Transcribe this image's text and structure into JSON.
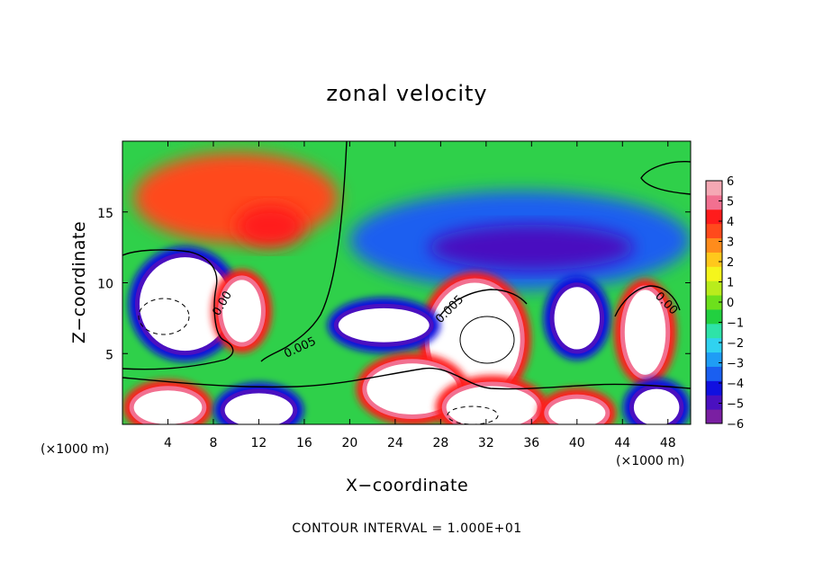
{
  "chart_data": {
    "type": "heatmap",
    "title": "zonal velocity",
    "xlabel": "X−coordinate",
    "ylabel": "Z−coordinate",
    "x_unit_left": "(×1000 m)",
    "x_unit_right": "(×1000 m)",
    "xlim": [
      0,
      50
    ],
    "ylim": [
      0,
      20
    ],
    "xticks": [
      4,
      8,
      12,
      16,
      20,
      24,
      28,
      32,
      36,
      40,
      44,
      48
    ],
    "yticks": [
      5,
      10,
      15
    ],
    "xtick_labels": [
      "4",
      "8",
      "12",
      "16",
      "20",
      "24",
      "28",
      "32",
      "36",
      "40",
      "44",
      "48"
    ],
    "ytick_labels": [
      "5",
      "10",
      "15"
    ],
    "colorbar": {
      "min": -6,
      "max": 6,
      "ticks": [
        6,
        5,
        4,
        3,
        2,
        1,
        0,
        -1,
        -2,
        -3,
        -4,
        -5,
        -6
      ],
      "tick_labels": [
        "6",
        "5",
        "4",
        "3",
        "2",
        "1",
        "0",
        "−1",
        "−2",
        "−3",
        "−4",
        "−5",
        "−6"
      ],
      "colors": [
        "#7a1fa2",
        "#4a10c0",
        "#1010e0",
        "#1a5ff0",
        "#1f9df5",
        "#30d2f0",
        "#2ee3a8",
        "#22d040",
        "#6de01c",
        "#b9ec1c",
        "#f5f51c",
        "#ffc81c",
        "#ff8c1c",
        "#ff4a1c",
        "#ff1c1c",
        "#f27090",
        "#f5a8b4"
      ]
    },
    "contour_labels": [
      "0.00",
      "0.005",
      "0.005",
      "0.00"
    ],
    "annotation": "CONTOUR INTERVAL = 1.000E+01",
    "regions": [
      {
        "label": "upper-left positive jet",
        "cx": 10,
        "cy": 16,
        "rx": 9,
        "ry": 3.2,
        "value": 3.5
      },
      {
        "label": "upper positive core",
        "cx": 13,
        "cy": 14,
        "rx": 3,
        "ry": 1.5,
        "value": 4.5
      },
      {
        "label": "upper-right negative jet",
        "cx": 35,
        "cy": 13,
        "rx": 15,
        "ry": 3.5,
        "value": -3.5
      },
      {
        "label": "upper negative core",
        "cx": 36,
        "cy": 12.5,
        "rx": 9,
        "ry": 1.6,
        "value": -5.0
      },
      {
        "label": "left vortex",
        "cx": 5.5,
        "cy": 8.5,
        "rx": 4,
        "ry": 3.3,
        "value": -7
      },
      {
        "label": "vortex 9-12",
        "cx": 10.5,
        "cy": 8,
        "rx": 1.7,
        "ry": 2.2,
        "value": 7
      },
      {
        "label": "central vortex",
        "cx": 31,
        "cy": 6,
        "rx": 4,
        "ry": 4,
        "value": 7
      },
      {
        "label": "vortex 39",
        "cx": 40,
        "cy": 7.5,
        "rx": 2,
        "ry": 2.2,
        "value": -7
      },
      {
        "label": "vortex 46",
        "cx": 46,
        "cy": 6.5,
        "rx": 1.8,
        "ry": 3,
        "value": 7
      },
      {
        "label": "diagonal band",
        "cx": 23,
        "cy": 7,
        "rx": 4,
        "ry": 1.2,
        "value": -7
      },
      {
        "label": "lower band",
        "cx": 25.5,
        "cy": 2.5,
        "rx": 4,
        "ry": 1.8,
        "value": 7
      },
      {
        "label": "bottom-left",
        "cx": 4,
        "cy": 1.2,
        "rx": 3,
        "ry": 1.2,
        "value": 7
      },
      {
        "label": "bottom 12",
        "cx": 12,
        "cy": 1,
        "rx": 3,
        "ry": 1.2,
        "value": -7
      },
      {
        "label": "bottom 32",
        "cx": 32.5,
        "cy": 1.2,
        "rx": 4,
        "ry": 1.5,
        "value": 7
      },
      {
        "label": "bottom 40",
        "cx": 40,
        "cy": 0.8,
        "rx": 2.5,
        "ry": 1,
        "value": 7
      },
      {
        "label": "bottom 47",
        "cx": 47,
        "cy": 1.2,
        "rx": 2,
        "ry": 1.3,
        "value": -7
      }
    ]
  }
}
